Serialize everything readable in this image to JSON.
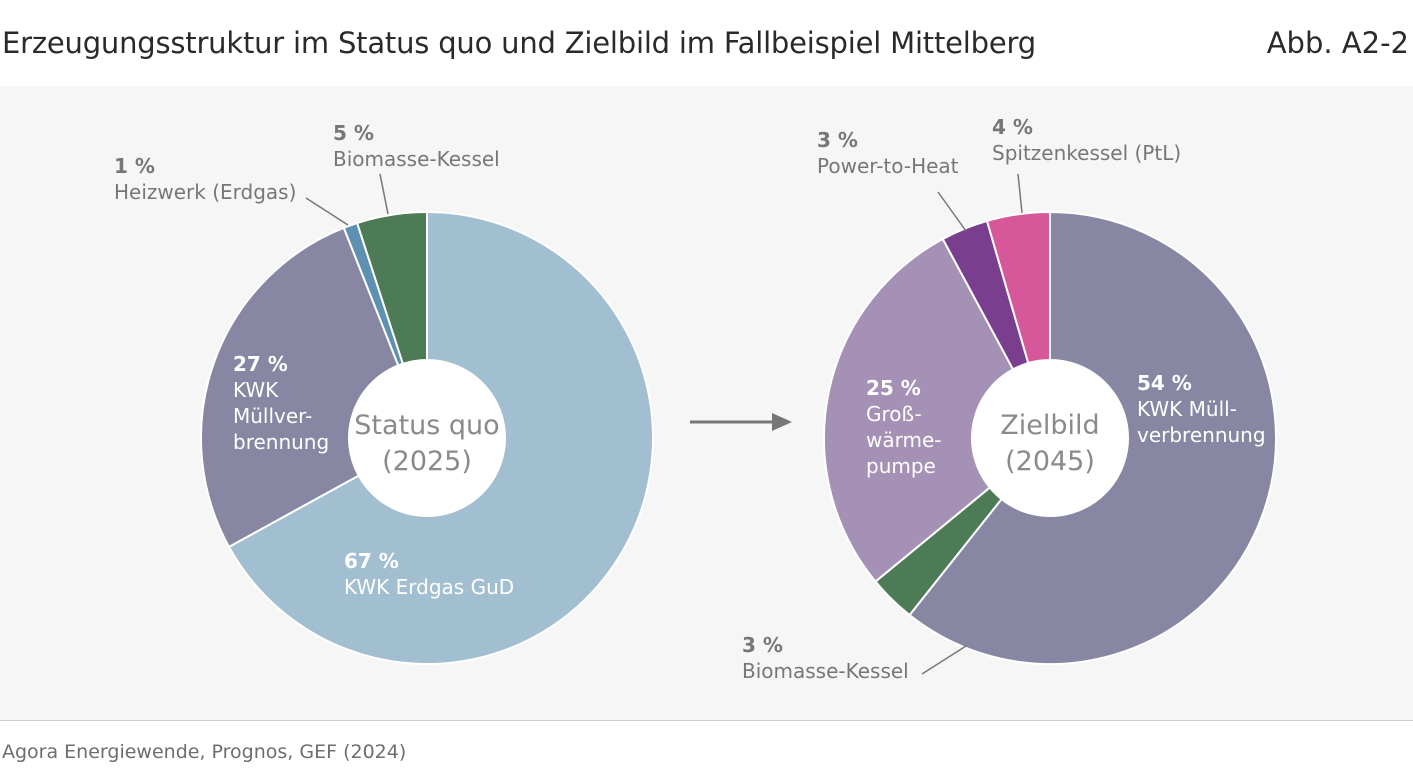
{
  "header": {
    "title": "Erzeugungsstruktur im Status quo und Zielbild im Fallbeispiel Mittelberg",
    "figure_number": "Abb. A2-2"
  },
  "footer": {
    "source": "Agora Energiewende, Prognos, GEF (2024)"
  },
  "colors": {
    "kwk_gud": "#a2bfd1",
    "kwk_muell": "#8787a3",
    "heizwerk": "#5e90b1",
    "biomasse": "#4d7b55",
    "grosswaermepumpe": "#a590b6",
    "power_to_heat": "#7a3e8e",
    "spitzenkessel": "#d6579a",
    "arrow": "#777777"
  },
  "chart_data": [
    {
      "type": "pie",
      "center_label": [
        "Status quo",
        "(2025)"
      ],
      "slices": [
        {
          "pct_label": "67 %",
          "name_lines": [
            "KWK Erdgas GuD"
          ],
          "value": 67,
          "color": "#a2bfd1",
          "label_color": "#ffffff"
        },
        {
          "pct_label": "27 %",
          "name_lines": [
            "KWK",
            "Müllver-",
            "brennung"
          ],
          "value": 27,
          "color": "#8787a3",
          "label_color": "#ffffff"
        },
        {
          "pct_label": "1 %",
          "name_lines": [
            "Heizwerk (Erdgas)"
          ],
          "value": 1,
          "color": "#5e90b1",
          "label_color": "#777777"
        },
        {
          "pct_label": "5 %",
          "name_lines": [
            "Biomasse-Kessel"
          ],
          "value": 5,
          "color": "#4d7b55",
          "label_color": "#777777"
        }
      ]
    },
    {
      "type": "pie",
      "center_label": [
        "Zielbild",
        "(2045)"
      ],
      "slices": [
        {
          "pct_label": "54 %",
          "name_lines": [
            "KWK Müll-",
            "verbrennung"
          ],
          "value": 54,
          "color": "#8787a3",
          "label_color": "#ffffff"
        },
        {
          "pct_label": "3 %",
          "name_lines": [
            "Biomasse-Kessel"
          ],
          "value": 3,
          "color": "#4d7b55",
          "label_color": "#777777"
        },
        {
          "pct_label": "25 %",
          "name_lines": [
            "Groß-",
            "wärme-",
            "pumpe"
          ],
          "value": 25,
          "color": "#a590b6",
          "label_color": "#ffffff"
        },
        {
          "pct_label": "3 %",
          "name_lines": [
            "Power-to-Heat"
          ],
          "value": 3,
          "color": "#7a3e8e",
          "label_color": "#777777"
        },
        {
          "pct_label": "4 %",
          "name_lines": [
            "Spitzenkessel (PtL)"
          ],
          "value": 4,
          "color": "#d6579a",
          "label_color": "#777777"
        }
      ]
    }
  ]
}
